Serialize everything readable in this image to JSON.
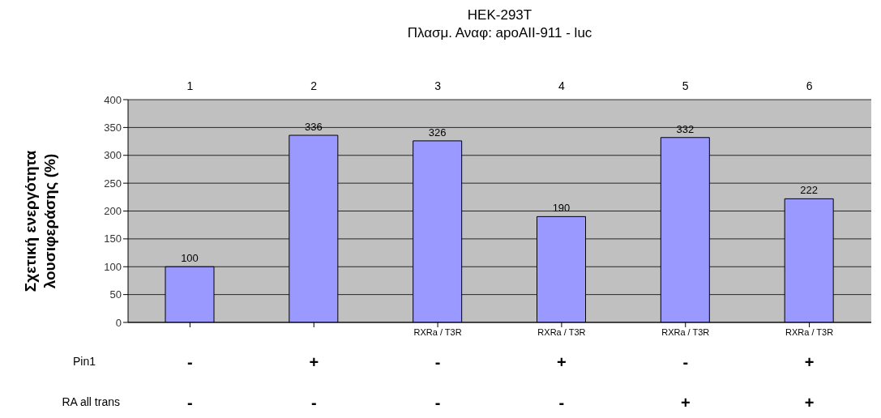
{
  "chart_data": {
    "type": "bar",
    "title": "HEK-293T",
    "subtitle": "Πλασμ. Αναφ: apoAII-911 - luc",
    "ylabel": "Σχετική ενεργότητα λουσιφεράσης (%)",
    "categories": [
      null,
      null,
      "RXRa  / T3R",
      "RXRa  / T3R",
      "RXRa  / T3R",
      "RXRa  / T3R"
    ],
    "values": [
      100,
      336,
      326,
      190,
      332,
      222
    ],
    "color": "#9999ff",
    "ylim": [
      0,
      400
    ],
    "yticks": [
      0,
      50,
      100,
      150,
      200,
      250,
      300,
      350,
      400
    ],
    "grid": "y",
    "data_labels": true,
    "annotations": [
      "1",
      "2",
      "3",
      "4",
      "5",
      "6",
      "Pin1",
      "-",
      "+",
      "-",
      "+",
      "-",
      "+",
      "RA all trans",
      "-",
      "-",
      "-",
      "-",
      "+",
      "+"
    ]
  }
}
